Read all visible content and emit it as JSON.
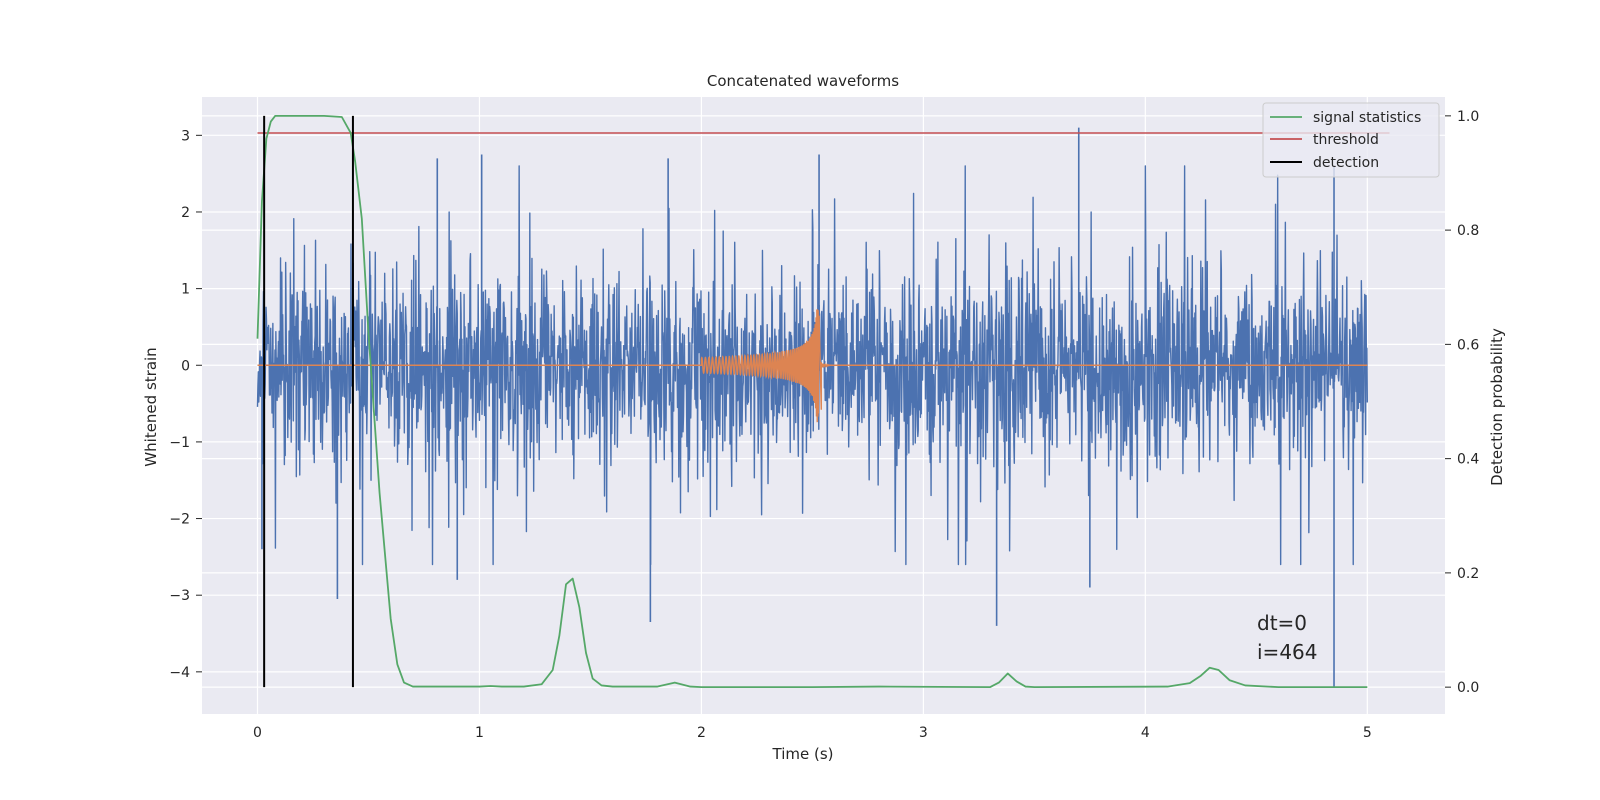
{
  "chart_data": {
    "type": "line",
    "title": "Concatenated waveforms",
    "xlabel": "Time (s)",
    "ylabel": "Whitened strain",
    "y2label": "Detection probability",
    "xlim": [
      -0.25,
      5.35
    ],
    "ylim": [
      -4.55,
      3.5
    ],
    "y2lim": [
      -0.047,
      1.033
    ],
    "xticks": [
      0,
      1,
      2,
      3,
      4,
      5
    ],
    "yticks": [
      -4,
      -3,
      -2,
      -1,
      0,
      1,
      2,
      3
    ],
    "y2ticks": [
      0.0,
      0.2,
      0.4,
      0.6,
      0.8,
      1.0
    ],
    "y2ticklabels": [
      "0.0",
      "0.2",
      "0.4",
      "0.6",
      "0.8",
      "1.0"
    ],
    "grid": true,
    "legend_position": "top-right",
    "colors": {
      "background": "#eaeaf2",
      "grid": "#ffffff",
      "strain": "#4c72b0",
      "injection": "#dd8452",
      "statistics": "#55a868",
      "threshold": "#c44e52",
      "detection": "#000000"
    },
    "series": [
      {
        "role": "strain",
        "axis": "left",
        "note": "dense whitened noise between x=0 and x=5, amplitude roughly within [-2.5, 2.5] with spikes",
        "x_range": [
          0,
          5
        ],
        "spikes": [
          [
            0.36,
            -3.05
          ],
          [
            0.81,
            2.7
          ],
          [
            1.01,
            2.75
          ],
          [
            1.77,
            -3.35
          ],
          [
            1.85,
            2.7
          ],
          [
            2.53,
            2.75
          ],
          [
            3.33,
            -3.4
          ],
          [
            3.7,
            3.1
          ],
          [
            3.75,
            -2.9
          ],
          [
            4.85,
            -4.2
          ],
          [
            4.85,
            2.6
          ],
          [
            0.02,
            -2.4
          ],
          [
            0.9,
            -2.8
          ]
        ]
      },
      {
        "role": "injection",
        "axis": "left",
        "note": "chirp injection between x=2.0 and x=2.53",
        "x_range": [
          2.0,
          2.53
        ],
        "peak": 0.78,
        "trough": -0.58
      },
      {
        "name": "signal statistics",
        "axis": "right",
        "x": [
          0.0,
          0.02,
          0.04,
          0.06,
          0.08,
          0.1,
          0.15,
          0.2,
          0.3,
          0.38,
          0.42,
          0.44,
          0.47,
          0.5,
          0.55,
          0.6,
          0.63,
          0.66,
          0.7,
          1.0,
          1.05,
          1.1,
          1.2,
          1.28,
          1.33,
          1.36,
          1.39,
          1.42,
          1.45,
          1.48,
          1.51,
          1.55,
          1.6,
          1.8,
          1.88,
          1.95,
          2.0,
          2.5,
          2.8,
          3.3,
          3.34,
          3.38,
          3.42,
          3.46,
          3.5,
          4.1,
          4.2,
          4.25,
          4.29,
          4.33,
          4.38,
          4.45,
          4.6,
          5.0
        ],
        "y": [
          0.61,
          0.85,
          0.96,
          0.99,
          1.0,
          1.0,
          1.0,
          1.0,
          1.0,
          0.998,
          0.97,
          0.92,
          0.82,
          0.62,
          0.34,
          0.12,
          0.04,
          0.008,
          0.001,
          0.001,
          0.002,
          0.001,
          0.001,
          0.005,
          0.03,
          0.09,
          0.18,
          0.19,
          0.14,
          0.06,
          0.015,
          0.003,
          0.001,
          0.001,
          0.008,
          0.001,
          0.0,
          0.0,
          0.001,
          0.0,
          0.008,
          0.024,
          0.01,
          0.001,
          0.0,
          0.001,
          0.007,
          0.02,
          0.034,
          0.03,
          0.012,
          0.003,
          0.0,
          0.0
        ]
      },
      {
        "name": "threshold",
        "axis": "right",
        "x": [
          0,
          5.1
        ],
        "y": [
          0.97,
          0.97
        ]
      },
      {
        "name": "detection",
        "axis": "right",
        "x": [
          0.03,
          0.43
        ],
        "y_range": [
          0.0,
          1.0
        ]
      }
    ],
    "legend": [
      "signal statistics",
      "threshold",
      "detection"
    ],
    "annotations": [
      "dt=0",
      "i=464"
    ]
  }
}
